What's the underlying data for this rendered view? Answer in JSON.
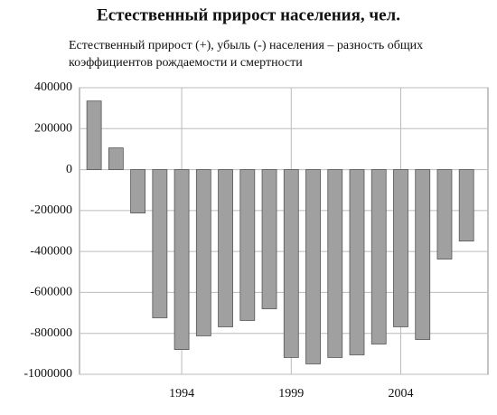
{
  "chart_data": {
    "type": "bar",
    "title": "Естественный прирост населения, чел.",
    "subtitle": [
      "Естественный прирост (+), убыль (-) населения – разность общих",
      "коэффициентов рождаемости и смертности"
    ],
    "categories": [
      null,
      null,
      null,
      null,
      "1994",
      null,
      null,
      null,
      null,
      "1999",
      null,
      null,
      null,
      null,
      "2004",
      null,
      null,
      null
    ],
    "values": [
      335000,
      106000,
      -212000,
      -724000,
      -879000,
      -812000,
      -768000,
      -737000,
      -680000,
      -918000,
      -949000,
      -918000,
      -905000,
      -852000,
      -768000,
      -830000,
      -437000,
      -349000
    ],
    "color": "#a0a0a0",
    "ylim": [
      -1000000,
      400000
    ],
    "yticks": [
      -1000000,
      -800000,
      -600000,
      -400000,
      -200000,
      0,
      200000,
      400000
    ],
    "grid": true
  }
}
